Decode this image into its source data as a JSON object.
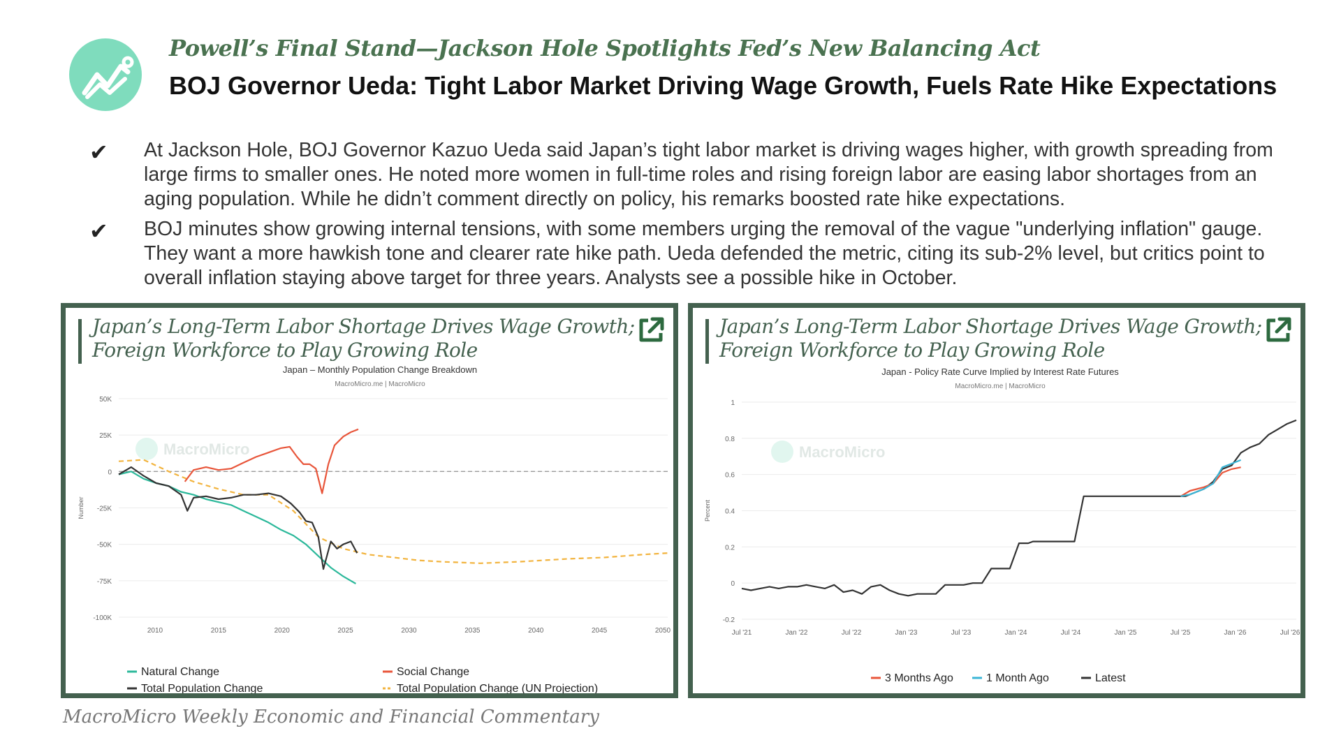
{
  "header": {
    "kicker": "Powell’s Final Stand—Jackson Hole Spotlights Fed’s New Balancing Act",
    "headline": "BOJ Governor Ueda: Tight Labor Market Driving Wage Growth, Fuels Rate Hike Expectations",
    "logo_icon": "chart-trend-icon",
    "logo_color": "#7fdcbd"
  },
  "bullets": [
    {
      "icon": "checkmark-icon",
      "text": "At Jackson Hole, BOJ Governor Kazuo Ueda said Japan’s tight labor market is driving wages higher, with growth spreading from large firms to smaller ones. He noted more women in full-time roles and rising foreign labor are easing labor shortages from an aging population. While he didn’t comment directly on policy, his remarks boosted rate hike expectations."
    },
    {
      "icon": "checkmark-icon",
      "text": "BOJ minutes show growing internal tensions, with some members urging the removal of the vague \"underlying inflation\" gauge. They want a more hawkish tone and clearer rate hike path. Ueda defended the metric, citing its sub-2% level, but critics point to overall inflation staying above target for three years. Analysts see a possible hike in October."
    }
  ],
  "panels": [
    {
      "title": "Japan’s Long-Term Labor Shortage Drives Wage Growth; Foreign Workforce to Play Growing Role",
      "external_icon": "external-link-icon"
    },
    {
      "title": "Japan’s Long-Term Labor Shortage Drives Wage Growth; Foreign Workforce to Play Growing Role",
      "external_icon": "external-link-icon"
    }
  ],
  "footer": "MacroMicro Weekly Economic and Financial Commentary",
  "chart_data": [
    {
      "type": "line",
      "title": "Japan – Monthly Population Change Breakdown",
      "source": "MacroMicro.me | MacroMicro",
      "watermark": "MacroMicro",
      "ylabel": "Number",
      "xlim": [
        2006,
        2050
      ],
      "ylim": [
        -100000,
        50000
      ],
      "x_ticks": [
        "2010",
        "2015",
        "2020",
        "2025",
        "2030",
        "2035",
        "2040",
        "2045",
        "2050"
      ],
      "y_ticks": [
        "50K",
        "25K",
        "0",
        "-25K",
        "-50K",
        "-75K",
        "-100K"
      ],
      "legend": "bottom",
      "series": [
        {
          "name": "Natural Change",
          "color": "#2bb89a",
          "dash": false,
          "x": [
            2006,
            2007,
            2008,
            2009,
            2010,
            2011,
            2012,
            2013,
            2014,
            2015,
            2016,
            2017,
            2018,
            2019,
            2020,
            2021,
            2022,
            2023,
            2024,
            2025
          ],
          "y": [
            -2000,
            0,
            -5000,
            -8000,
            -10000,
            -14000,
            -16000,
            -19000,
            -21000,
            -23000,
            -27000,
            -31000,
            -35000,
            -40000,
            -44000,
            -50000,
            -58000,
            -66000,
            -72000,
            -77000
          ]
        },
        {
          "name": "Social Change",
          "color": "#e8553a",
          "dash": false,
          "x": [
            2011.3,
            2012,
            2013,
            2014,
            2015,
            2016,
            2017,
            2018,
            2019,
            2019.7,
            2020.3,
            2020.8,
            2021.3,
            2021.8,
            2022.3,
            2022.8,
            2023.3,
            2024,
            2024.6,
            2025.2
          ],
          "y": [
            -7000,
            1000,
            3000,
            1000,
            2000,
            6000,
            10000,
            13000,
            16000,
            17000,
            10000,
            5000,
            5000,
            2000,
            -15000,
            5000,
            18000,
            24000,
            27000,
            29000
          ]
        },
        {
          "name": "Total Population Change",
          "color": "#333333",
          "dash": false,
          "x": [
            2006,
            2007,
            2008,
            2009,
            2010,
            2011,
            2011.5,
            2012,
            2013,
            2014,
            2015,
            2016,
            2017,
            2018,
            2019,
            2019.8,
            2020.5,
            2021,
            2021.5,
            2022,
            2022.4,
            2023,
            2023.5,
            2024,
            2024.6,
            2025.1
          ],
          "y": [
            -2000,
            3000,
            -3000,
            -8000,
            -10000,
            -16000,
            -27000,
            -18000,
            -17000,
            -19000,
            -18000,
            -16000,
            -16000,
            -15000,
            -17000,
            -22000,
            -28000,
            -34000,
            -35000,
            -45000,
            -67000,
            -48000,
            -53000,
            -50000,
            -48000,
            -56000
          ]
        },
        {
          "name": "Total Population Change (UN Projection)",
          "color": "#f2b33d",
          "dash": true,
          "x": [
            2006,
            2008,
            2010,
            2012,
            2014,
            2016,
            2018,
            2020,
            2022,
            2024,
            2026,
            2028,
            2030,
            2032,
            2035,
            2038,
            2040,
            2042,
            2045,
            2048,
            2050
          ],
          "y": [
            7000,
            8000,
            0,
            -7000,
            -12000,
            -16000,
            -16000,
            -27000,
            -45000,
            -53000,
            -57000,
            -59000,
            -61000,
            -62000,
            -63000,
            -62000,
            -61000,
            -60000,
            -59000,
            -57000,
            -56000
          ]
        }
      ]
    },
    {
      "type": "line",
      "title": "Japan - Policy Rate Curve Implied by Interest Rate Futures",
      "source": "MacroMicro.me | MacroMicro",
      "watermark": "MacroMicro",
      "ylabel": "Percent",
      "xlim": [
        0,
        60
      ],
      "ylim": [
        -0.2,
        1.0
      ],
      "x_ticks": [
        "Jul '21",
        "Jan '22",
        "Jul '22",
        "Jan '23",
        "Jul '23",
        "Jan '24",
        "Jul '24",
        "Jan '25",
        "Jul '25",
        "Jan '26",
        "Jul '26"
      ],
      "y_ticks": [
        "1",
        "0.8",
        "0.6",
        "0.4",
        "0.2",
        "0",
        "-0.2"
      ],
      "legend": "bottom",
      "series": [
        {
          "name": "3 Months Ago",
          "color": "#e8553a",
          "dash": false,
          "x": [
            47.5,
            48.5,
            50,
            51,
            52,
            53,
            54
          ],
          "y": [
            0.48,
            0.51,
            0.53,
            0.55,
            0.61,
            0.63,
            0.64
          ]
        },
        {
          "name": "1 Month Ago",
          "color": "#3ab5d6",
          "dash": false,
          "x": [
            47.5,
            48.5,
            50,
            51,
            52,
            53,
            54
          ],
          "y": [
            0.48,
            0.49,
            0.52,
            0.55,
            0.64,
            0.66,
            0.68
          ]
        },
        {
          "name": "Latest",
          "color": "#333333",
          "dash": false,
          "x": [
            0,
            1,
            2,
            3,
            4,
            5,
            6,
            7,
            8,
            9,
            10,
            11,
            12,
            13,
            14,
            15,
            16,
            17,
            18,
            19,
            20,
            21,
            22,
            23,
            24,
            25,
            26,
            27,
            28,
            29,
            30,
            31,
            31.5,
            32,
            33,
            34,
            35,
            36,
            37,
            37.5,
            38,
            39,
            40,
            41,
            42,
            42.5,
            43,
            44,
            45,
            46,
            47,
            48,
            49,
            50,
            51,
            52,
            53,
            54,
            55,
            56,
            57,
            58,
            59,
            60
          ],
          "y": [
            -0.03,
            -0.04,
            -0.03,
            -0.02,
            -0.03,
            -0.02,
            -0.02,
            -0.01,
            -0.02,
            -0.03,
            -0.01,
            -0.05,
            -0.04,
            -0.06,
            -0.02,
            -0.01,
            -0.04,
            -0.06,
            -0.07,
            -0.06,
            -0.06,
            -0.06,
            -0.01,
            -0.01,
            -0.01,
            0.0,
            0.0,
            0.08,
            0.08,
            0.08,
            0.22,
            0.22,
            0.23,
            0.23,
            0.23,
            0.23,
            0.23,
            0.23,
            0.48,
            0.48,
            0.48,
            0.48,
            0.48,
            0.48,
            0.48,
            0.48,
            0.48,
            0.48,
            0.48,
            0.48,
            0.48,
            0.48,
            0.5,
            0.52,
            0.56,
            0.63,
            0.65,
            0.72,
            0.75,
            0.77,
            0.82,
            0.85,
            0.88,
            0.9
          ]
        }
      ]
    }
  ]
}
